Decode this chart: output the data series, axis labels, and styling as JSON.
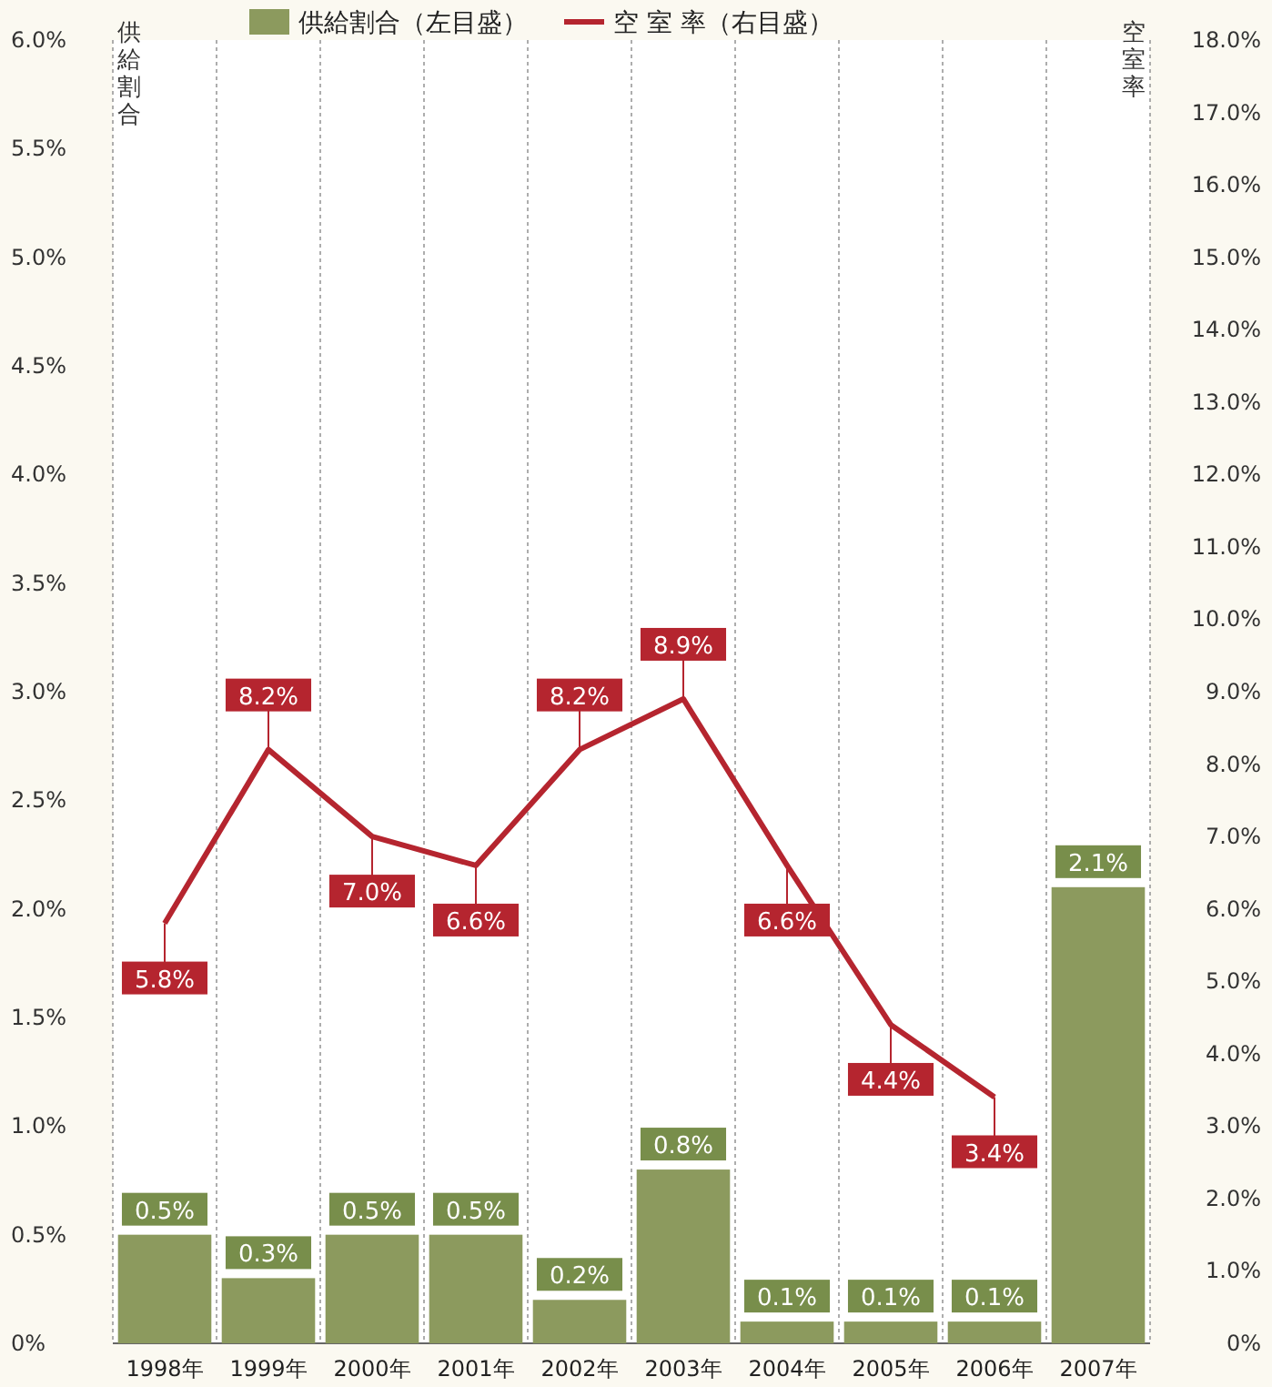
{
  "chart_data": {
    "type": "bar",
    "categories": [
      "1998年",
      "1999年",
      "2000年",
      "2001年",
      "2002年",
      "2003年",
      "2004年",
      "2005年",
      "2006年",
      "2007年"
    ],
    "series": [
      {
        "name": "供給割合（左目盛）",
        "color": "#8c9a5e",
        "values": [
          0.5,
          0.3,
          0.5,
          0.5,
          0.2,
          0.8,
          0.1,
          0.1,
          0.1,
          2.1
        ],
        "value_labels": [
          "0.5%",
          "0.3%",
          "0.5%",
          "0.5%",
          "0.2%",
          "0.8%",
          "0.1%",
          "0.1%",
          "0.1%",
          "2.1%"
        ]
      },
      {
        "name": "空 室 率（右目盛）",
        "type": "line",
        "axis": "y2",
        "color": "#b5252f",
        "values": [
          5.8,
          8.2,
          7.0,
          6.6,
          8.2,
          8.9,
          6.6,
          4.4,
          3.4,
          null
        ],
        "value_labels": [
          "5.8%",
          "8.2%",
          "7.0%",
          "6.6%",
          "8.2%",
          "8.9%",
          "6.6%",
          "4.4%",
          "3.4%",
          null
        ]
      }
    ],
    "ylabel": "供給割合",
    "y2label": "空室率",
    "ylim": [
      0,
      6
    ],
    "yticks": [
      {
        "value": 0,
        "label": "0%"
      },
      {
        "value": 0.5,
        "label": "0.5%"
      },
      {
        "value": 1,
        "label": "1.0%"
      },
      {
        "value": 1.5,
        "label": "1.5%"
      },
      {
        "value": 2,
        "label": "2.0%"
      },
      {
        "value": 2.5,
        "label": "2.5%"
      },
      {
        "value": 3,
        "label": "3.0%"
      },
      {
        "value": 3.5,
        "label": "3.5%"
      },
      {
        "value": 4,
        "label": "4.0%"
      },
      {
        "value": 4.5,
        "label": "4.5%"
      },
      {
        "value": 5,
        "label": "5.0%"
      },
      {
        "value": 5.5,
        "label": "5.5%"
      },
      {
        "value": 6,
        "label": "6.0%"
      }
    ],
    "y2lim": [
      0,
      18
    ],
    "y2ticks": [
      {
        "value": 0,
        "label": "0%"
      },
      {
        "value": 1,
        "label": "1.0%"
      },
      {
        "value": 2,
        "label": "2.0%"
      },
      {
        "value": 3,
        "label": "3.0%"
      },
      {
        "value": 4,
        "label": "4.0%"
      },
      {
        "value": 5,
        "label": "5.0%"
      },
      {
        "value": 6,
        "label": "6.0%"
      },
      {
        "value": 7,
        "label": "7.0%"
      },
      {
        "value": 8,
        "label": "8.0%"
      },
      {
        "value": 9,
        "label": "9.0%"
      },
      {
        "value": 10,
        "label": "10.0%"
      },
      {
        "value": 11,
        "label": "11.0%"
      },
      {
        "value": 12,
        "label": "12.0%"
      },
      {
        "value": 13,
        "label": "13.0%"
      },
      {
        "value": 14,
        "label": "14.0%"
      },
      {
        "value": 15,
        "label": "15.0%"
      },
      {
        "value": 16,
        "label": "16.0%"
      },
      {
        "value": 17,
        "label": "17.0%"
      },
      {
        "value": 18,
        "label": "18.0%"
      }
    ],
    "legend": "top",
    "grid": "x"
  }
}
